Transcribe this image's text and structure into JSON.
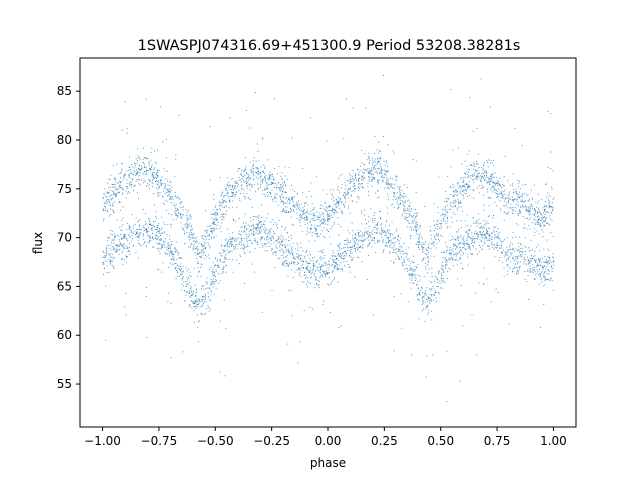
{
  "chart_data": {
    "type": "scatter",
    "title": "1SWASPJ074316.69+451300.9 Period 53208.38281s",
    "xlabel": "phase",
    "ylabel": "flux",
    "xlim": [
      -1.1,
      1.1
    ],
    "ylim": [
      50.6,
      88.4
    ],
    "xticks": [
      "−1.00",
      "−0.75",
      "−0.50",
      "−0.25",
      "0.00",
      "0.25",
      "0.50",
      "0.75",
      "1.00"
    ],
    "xtick_values": [
      -1.0,
      -0.75,
      -0.5,
      -0.25,
      0.0,
      0.25,
      0.5,
      0.75,
      1.0
    ],
    "yticks": [
      "55",
      "60",
      "65",
      "70",
      "75",
      "80",
      "85"
    ],
    "ytick_values": [
      55,
      60,
      65,
      70,
      75,
      80,
      85
    ],
    "grid": false,
    "marker_color": "#1f77b4",
    "series": [
      {
        "band": "upper",
        "phase": [
          -1.0,
          -0.9,
          -0.82,
          -0.75,
          -0.68,
          -0.62,
          -0.57,
          -0.52,
          -0.45,
          -0.38,
          -0.32,
          -0.25,
          -0.18,
          -0.12,
          -0.06,
          0.0,
          0.1,
          0.18,
          0.25,
          0.32,
          0.38,
          0.43,
          0.48,
          0.55,
          0.62,
          0.68,
          0.75,
          0.82,
          0.88,
          0.94,
          1.0
        ],
        "flux": [
          73.5,
          75.8,
          77.0,
          76.0,
          73.5,
          71.0,
          68.0,
          71.0,
          74.0,
          76.0,
          76.5,
          75.5,
          74.0,
          72.5,
          71.5,
          72.5,
          75.0,
          77.0,
          76.5,
          74.0,
          71.5,
          68.0,
          71.0,
          74.0,
          76.0,
          76.5,
          75.0,
          74.0,
          73.0,
          72.0,
          73.0
        ]
      },
      {
        "band": "lower",
        "phase": [
          -1.0,
          -0.92,
          -0.85,
          -0.78,
          -0.72,
          -0.66,
          -0.61,
          -0.57,
          -0.52,
          -0.46,
          -0.4,
          -0.32,
          -0.25,
          -0.18,
          -0.1,
          -0.05,
          0.0,
          0.08,
          0.15,
          0.2,
          0.27,
          0.33,
          0.39,
          0.43,
          0.48,
          0.54,
          0.6,
          0.68,
          0.75,
          0.82,
          0.9,
          0.96,
          1.0
        ],
        "flux": [
          68.0,
          69.5,
          70.5,
          71.0,
          69.5,
          67.0,
          64.5,
          63.0,
          65.5,
          68.5,
          70.0,
          70.8,
          70.0,
          68.5,
          67.0,
          66.5,
          67.0,
          68.5,
          70.0,
          70.8,
          70.0,
          68.5,
          65.5,
          63.0,
          65.5,
          68.5,
          69.5,
          70.5,
          69.5,
          68.0,
          67.5,
          66.5,
          67.5
        ]
      }
    ]
  }
}
